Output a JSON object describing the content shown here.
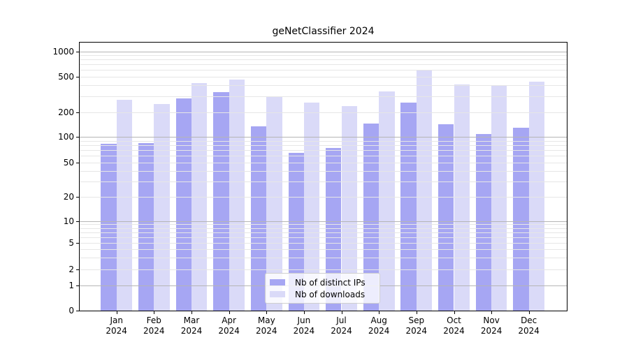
{
  "title": "geNetClassifier 2024",
  "chart_data": {
    "type": "bar",
    "title": "geNetClassifier 2024",
    "categories": [
      "Jan 2024",
      "Feb 2024",
      "Mar 2024",
      "Apr 2024",
      "May 2024",
      "Jun 2024",
      "Jul 2024",
      "Aug 2024",
      "Sep 2024",
      "Oct 2024",
      "Nov 2024",
      "Dec 2024"
    ],
    "series": [
      {
        "name": "Nb of distinct IPs",
        "color": "#a6a6f3",
        "values": [
          83,
          85,
          286,
          333,
          134,
          65,
          74,
          145,
          258,
          142,
          108,
          129
        ]
      },
      {
        "name": "Nb of downloads",
        "color": "#dadaf8",
        "values": [
          277,
          246,
          425,
          462,
          295,
          255,
          234,
          341,
          593,
          410,
          397,
          441
        ]
      }
    ],
    "y_ticks": [
      0,
      1,
      2,
      5,
      10,
      20,
      50,
      100,
      200,
      500,
      1000
    ],
    "ylim": [
      0,
      1000
    ],
    "yscale": "log-like",
    "grid": true,
    "legend_position": "lower center",
    "xlabel": "",
    "ylabel": ""
  },
  "colors": {
    "background": "#ffffff",
    "bar_distinct_ips": "#a6a6f3",
    "bar_downloads": "#dadaf8",
    "grid_major": "#b5b5b5",
    "grid_minor": "#e6e6e6",
    "axis": "#000000"
  }
}
